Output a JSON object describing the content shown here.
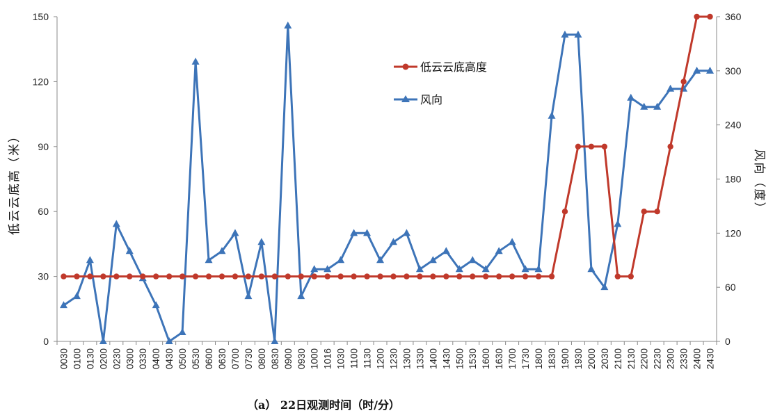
{
  "chart_data": {
    "type": "line",
    "caption": "（a） 22日观测时间（时/分）",
    "ylabel": "低云云底高（米）",
    "y2label": "风向（度）",
    "ylim": [
      0,
      150
    ],
    "y2lim": [
      0,
      360
    ],
    "yticks": [
      0,
      30,
      60,
      90,
      120,
      150
    ],
    "y2ticks": [
      0,
      60,
      120,
      180,
      240,
      300,
      360
    ],
    "grid": false,
    "legend_position": "upper-center",
    "categories": [
      "0030",
      "0100",
      "0130",
      "0200",
      "0230",
      "0300",
      "0330",
      "0400",
      "0430",
      "0500",
      "0530",
      "0600",
      "0630",
      "0700",
      "0730",
      "0800",
      "0830",
      "0900",
      "0930",
      "1000",
      "1016",
      "1030",
      "1100",
      "1130",
      "1200",
      "1230",
      "1300",
      "1330",
      "1400",
      "1430",
      "1500",
      "1530",
      "1600",
      "1630",
      "1700",
      "1730",
      "1800",
      "1830",
      "1900",
      "1930",
      "2000",
      "2030",
      "2100",
      "2130",
      "2200",
      "2230",
      "2300",
      "2330",
      "2400",
      "2430"
    ],
    "series": [
      {
        "name": "低云云底高度",
        "axis": "left",
        "color": "#c0392b",
        "marker": "circle",
        "values": [
          30,
          30,
          30,
          30,
          30,
          30,
          30,
          30,
          30,
          30,
          30,
          30,
          30,
          30,
          30,
          30,
          30,
          30,
          30,
          30,
          30,
          30,
          30,
          30,
          30,
          30,
          30,
          30,
          30,
          30,
          30,
          30,
          30,
          30,
          30,
          30,
          30,
          30,
          60,
          90,
          90,
          90,
          30,
          30,
          60,
          60,
          90,
          120,
          150,
          150
        ]
      },
      {
        "name": "风向",
        "axis": "right",
        "color": "#3d74b8",
        "marker": "triangle",
        "values": [
          40,
          50,
          90,
          0,
          130,
          100,
          70,
          40,
          0,
          10,
          310,
          90,
          100,
          120,
          50,
          110,
          0,
          350,
          50,
          80,
          80,
          90,
          120,
          120,
          90,
          110,
          120,
          80,
          90,
          100,
          80,
          90,
          80,
          100,
          110,
          80,
          80,
          250,
          340,
          340,
          80,
          60,
          130,
          270,
          260,
          260,
          280,
          280,
          300,
          300
        ]
      }
    ]
  }
}
